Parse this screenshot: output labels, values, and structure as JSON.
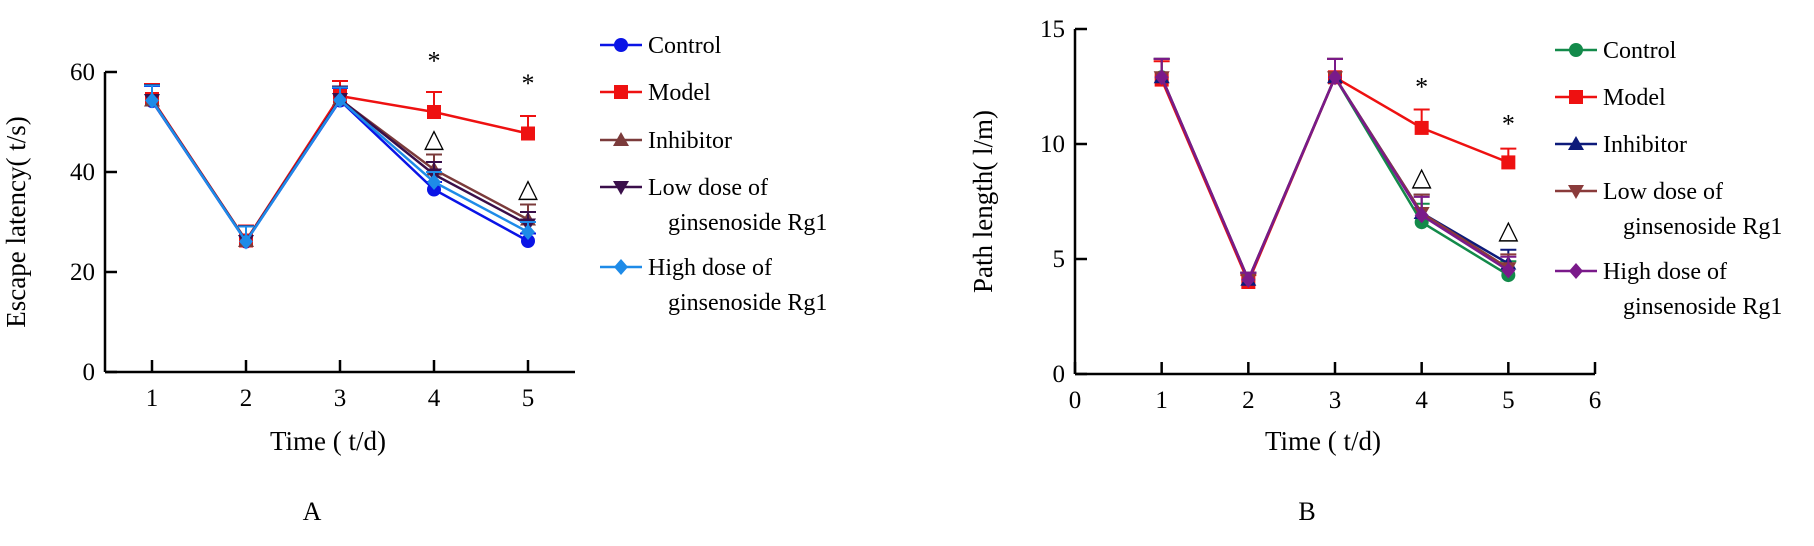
{
  "colors": {
    "control_A": "#0a14e6",
    "model": "#ee1111",
    "inhibitor_A": "#7b3b3b",
    "low_A": "#3a0f4a",
    "high_A": "#1e8be8",
    "control_B": "#138a4a",
    "inhibitor_B": "#0d1a7a",
    "low_B": "#8a3b3b",
    "high_B": "#7a1a8a"
  },
  "chart_data": [
    {
      "type": "line",
      "panel_label": "A",
      "xlabel": "Time ( t/d)",
      "ylabel": "Escape latency( t/s)",
      "xlim": [
        0.5,
        5.5
      ],
      "ylim": [
        0,
        60
      ],
      "x_ticks": [
        "1",
        "2",
        "3",
        "4",
        "5"
      ],
      "y_ticks": [
        "0",
        "20",
        "40",
        "60"
      ],
      "x": [
        1,
        2,
        3,
        4,
        5
      ],
      "series": [
        {
          "name": "Control",
          "marker": "circle",
          "color_key": "control_A",
          "values": [
            54.2,
            26.1,
            54.3,
            36.5,
            26.2
          ],
          "errors": [
            3.0,
            3.0,
            2.5,
            1.5,
            1.5
          ]
        },
        {
          "name": "Model",
          "marker": "square",
          "color_key": "model",
          "values": [
            54.6,
            26.3,
            55.2,
            52.0,
            47.7
          ],
          "errors": [
            3.0,
            3.0,
            3.0,
            4.0,
            3.5
          ]
        },
        {
          "name": "Inhibitor",
          "marker": "triangle-up",
          "color_key": "inhibitor_A",
          "values": [
            54.3,
            26.2,
            54.5,
            40.5,
            30.5
          ],
          "errors": [
            3.0,
            3.0,
            2.5,
            3.0,
            3.0
          ]
        },
        {
          "name": "Low dose of ginsenoside Rg1",
          "label_lines": [
            "Low dose of",
            "ginsenoside Rg1"
          ],
          "marker": "triangle-down",
          "color_key": "low_A",
          "values": [
            54.4,
            26.2,
            54.6,
            39.5,
            29.5
          ],
          "errors": [
            3.0,
            3.0,
            2.5,
            2.5,
            2.5
          ]
        },
        {
          "name": "High dose of ginsenoside Rg1",
          "label_lines": [
            "High dose of",
            "ginsenoside Rg1"
          ],
          "marker": "diamond",
          "color_key": "high_A",
          "values": [
            54.3,
            26.1,
            54.4,
            38.0,
            28.0
          ],
          "errors": [
            3.0,
            3.0,
            2.5,
            2.0,
            2.0
          ]
        }
      ],
      "annotations": [
        {
          "text": "*",
          "x": 4,
          "y": 60.5
        },
        {
          "text": "*",
          "x": 5,
          "y": 56
        },
        {
          "text": "△",
          "x": 4,
          "y": 45
        },
        {
          "text": "△",
          "x": 5,
          "y": 35
        }
      ]
    },
    {
      "type": "line",
      "panel_label": "B",
      "xlabel": "Time ( t/d)",
      "ylabel": "Path length( l/m)",
      "xlim": [
        0,
        6
      ],
      "ylim": [
        0,
        15
      ],
      "x_ticks": [
        "0",
        "1",
        "2",
        "3",
        "4",
        "5",
        "6"
      ],
      "y_ticks": [
        "0",
        "5",
        "10",
        "15"
      ],
      "x": [
        1,
        2,
        3,
        4,
        5
      ],
      "series": [
        {
          "name": "Control",
          "marker": "circle",
          "color_key": "control_B",
          "values": [
            12.9,
            4.1,
            12.9,
            6.6,
            4.3
          ],
          "errors": [
            0.8,
            0.3,
            0.8,
            0.8,
            0.6
          ]
        },
        {
          "name": "Model",
          "marker": "square",
          "color_key": "model",
          "values": [
            12.8,
            4.0,
            12.9,
            10.7,
            9.2
          ],
          "errors": [
            0.8,
            0.3,
            0.8,
            0.8,
            0.6
          ]
        },
        {
          "name": "Inhibitor",
          "marker": "triangle-up",
          "color_key": "inhibitor_B",
          "values": [
            12.9,
            4.1,
            12.9,
            7.0,
            4.8
          ],
          "errors": [
            0.8,
            0.3,
            0.8,
            0.8,
            0.6
          ]
        },
        {
          "name": "Low dose of ginsenoside Rg1",
          "label_lines": [
            "Low dose of",
            "ginsenoside Rg1"
          ],
          "marker": "triangle-down",
          "color_key": "low_B",
          "values": [
            12.9,
            4.1,
            12.9,
            7.0,
            4.6
          ],
          "errors": [
            0.8,
            0.3,
            0.8,
            0.8,
            0.6
          ]
        },
        {
          "name": "High dose of ginsenoside Rg1",
          "label_lines": [
            "High dose of",
            "ginsenoside Rg1"
          ],
          "marker": "diamond",
          "color_key": "high_B",
          "values": [
            12.9,
            4.1,
            12.9,
            6.9,
            4.5
          ],
          "errors": [
            0.8,
            0.3,
            0.8,
            0.8,
            0.6
          ]
        }
      ],
      "annotations": [
        {
          "text": "*",
          "x": 4,
          "y": 12.1
        },
        {
          "text": "*",
          "x": 5,
          "y": 10.5
        },
        {
          "text": "△",
          "x": 4,
          "y": 8.2
        },
        {
          "text": "△",
          "x": 5,
          "y": 5.9
        }
      ]
    }
  ]
}
